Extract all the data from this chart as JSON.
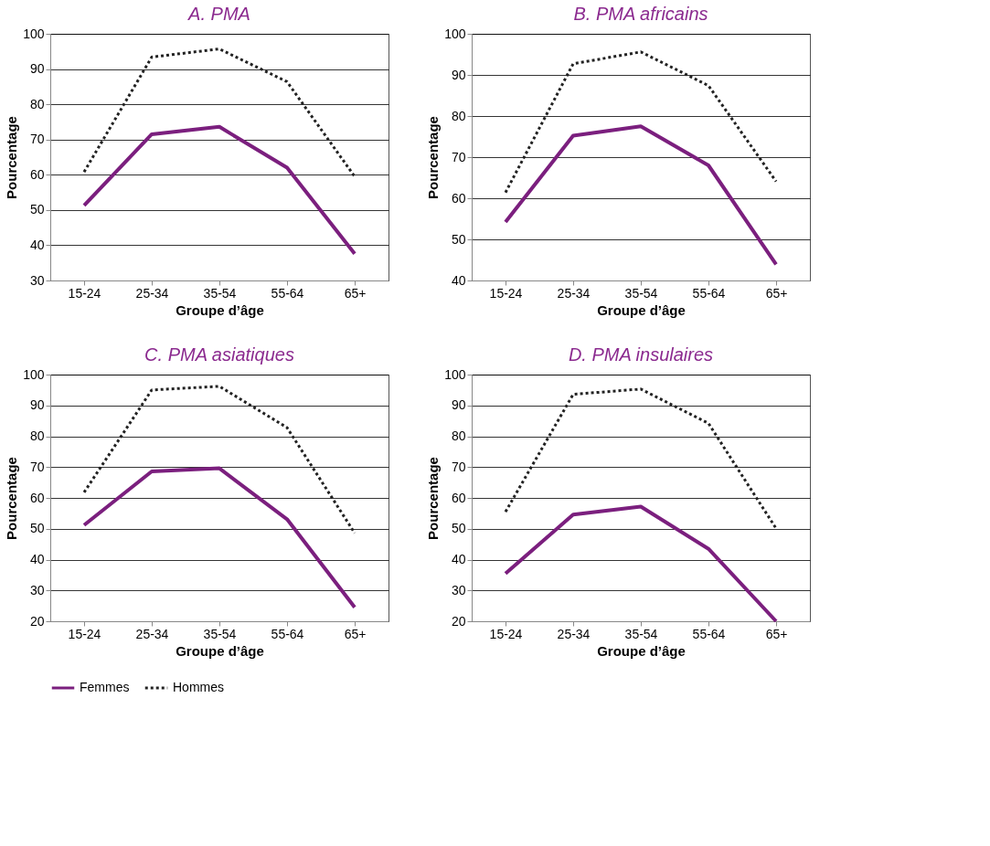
{
  "chart_data": [
    {
      "type": "line",
      "title": "A.  PMA",
      "categories": [
        "15-24",
        "25-34",
        "35-54",
        "55-64",
        "65+"
      ],
      "xlabel": "Groupe d’âge",
      "ylabel": "Pourcentage",
      "ylim": [
        30,
        100
      ],
      "yticks": [
        30,
        40,
        50,
        60,
        70,
        80,
        90,
        100
      ],
      "grid": "y",
      "legend": "bottom",
      "series": [
        {
          "name": "Femmes",
          "color": "#7b1f7e",
          "line_style": "solid",
          "values": [
            51.3,
            71.5,
            73.6,
            62,
            37.6
          ]
        },
        {
          "name": "Hommes",
          "color": "#222222",
          "line_style": "dotted",
          "values": [
            60.8,
            93.4,
            95.7,
            86.4,
            59.5
          ]
        }
      ]
    },
    {
      "type": "line",
      "title": "B.  PMA africains",
      "categories": [
        "15-24",
        "25-34",
        "35-54",
        "55-64",
        "65+"
      ],
      "xlabel": "Groupe d’âge",
      "ylabel": "Pourcentage",
      "ylim": [
        40,
        100
      ],
      "yticks": [
        40,
        50,
        60,
        70,
        80,
        90,
        100
      ],
      "grid": "y",
      "series": [
        {
          "color": "#7b1f7e",
          "line_style": "solid",
          "values": [
            54.2,
            75.2,
            77.5,
            68,
            43.9
          ]
        },
        {
          "color": "#222222",
          "line_style": "dotted",
          "values": [
            61.4,
            92.7,
            95.6,
            87.4,
            64.1
          ]
        }
      ]
    },
    {
      "type": "line",
      "title": "C. PMA asiatiques",
      "categories": [
        "15-24",
        "25-34",
        "35-54",
        "55-64",
        "65+"
      ],
      "xlabel": "Groupe d’âge",
      "ylabel": "Pourcentage",
      "ylim": [
        20,
        100
      ],
      "yticks": [
        20,
        30,
        40,
        50,
        60,
        70,
        80,
        90,
        100
      ],
      "grid": "y",
      "series": [
        {
          "color": "#7b1f7e",
          "line_style": "solid",
          "values": [
            51.2,
            68.6,
            69.6,
            53.1,
            24.5
          ]
        },
        {
          "color": "#222222",
          "line_style": "dotted",
          "values": [
            61.8,
            95,
            96.2,
            82.8,
            48.6
          ]
        }
      ]
    },
    {
      "type": "line",
      "title": "D.  PMA insulaires",
      "categories": [
        "15-24",
        "25-34",
        "35-54",
        "55-64",
        "65+"
      ],
      "xlabel": "Groupe d’âge",
      "ylabel": "Pourcentage",
      "ylim": [
        20,
        100
      ],
      "yticks": [
        20,
        30,
        40,
        50,
        60,
        70,
        80,
        90,
        100
      ],
      "grid": "y",
      "series": [
        {
          "color": "#7b1f7e",
          "line_style": "solid",
          "values": [
            35.5,
            54.6,
            57.2,
            43.5,
            20
          ]
        },
        {
          "color": "#222222",
          "line_style": "dotted",
          "values": [
            55.5,
            93.6,
            95.3,
            84.2,
            50.1
          ]
        }
      ]
    }
  ]
}
